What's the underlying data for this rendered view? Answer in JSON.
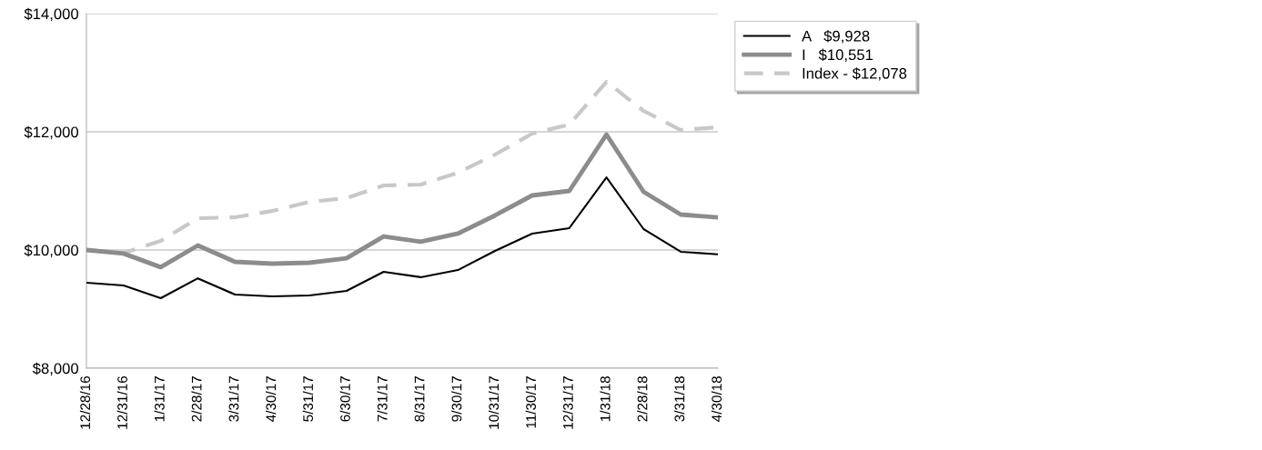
{
  "chart_data": {
    "type": "line",
    "categories": [
      "12/28/16",
      "12/31/16",
      "1/31/17",
      "2/28/17",
      "3/31/17",
      "4/30/17",
      "5/31/17",
      "6/30/17",
      "7/31/17",
      "8/31/17",
      "9/30/17",
      "10/31/17",
      "11/30/17",
      "12/31/17",
      "1/31/18",
      "2/28/18",
      "3/31/18",
      "4/30/18"
    ],
    "series": [
      {
        "name": "A   $9,928",
        "color": "#000000",
        "line_style": "solid",
        "values": [
          9446,
          9400,
          9185,
          9520,
          9246,
          9215,
          9230,
          9308,
          9630,
          9540,
          9660,
          9985,
          10277,
          10370,
          11230,
          10354,
          9970,
          9928
        ]
      },
      {
        "name": "I   $10,551",
        "color": "#8c8c8c",
        "line_style": "solid",
        "values": [
          10000,
          9940,
          9710,
          10077,
          9800,
          9770,
          9785,
          9860,
          10230,
          10140,
          10277,
          10585,
          10923,
          11000,
          11954,
          10985,
          10600,
          10551
        ]
      },
      {
        "name": "Index - $12,078",
        "color": "#c8c8c8",
        "line_style": "dashed",
        "values": [
          10000,
          9950,
          10154,
          10538,
          10554,
          10660,
          10815,
          10877,
          11092,
          11108,
          11308,
          11615,
          11970,
          12123,
          12846,
          12354,
          12030,
          12078
        ]
      }
    ],
    "ylim": [
      8000,
      14000
    ],
    "yticks": [
      {
        "value": 8000,
        "label": "$8,000"
      },
      {
        "value": 10000,
        "label": "$10,000"
      },
      {
        "value": 12000,
        "label": "$12,000"
      },
      {
        "value": 14000,
        "label": "$14,000"
      }
    ],
    "grid": "y",
    "legend": "top right",
    "marker": "none"
  }
}
